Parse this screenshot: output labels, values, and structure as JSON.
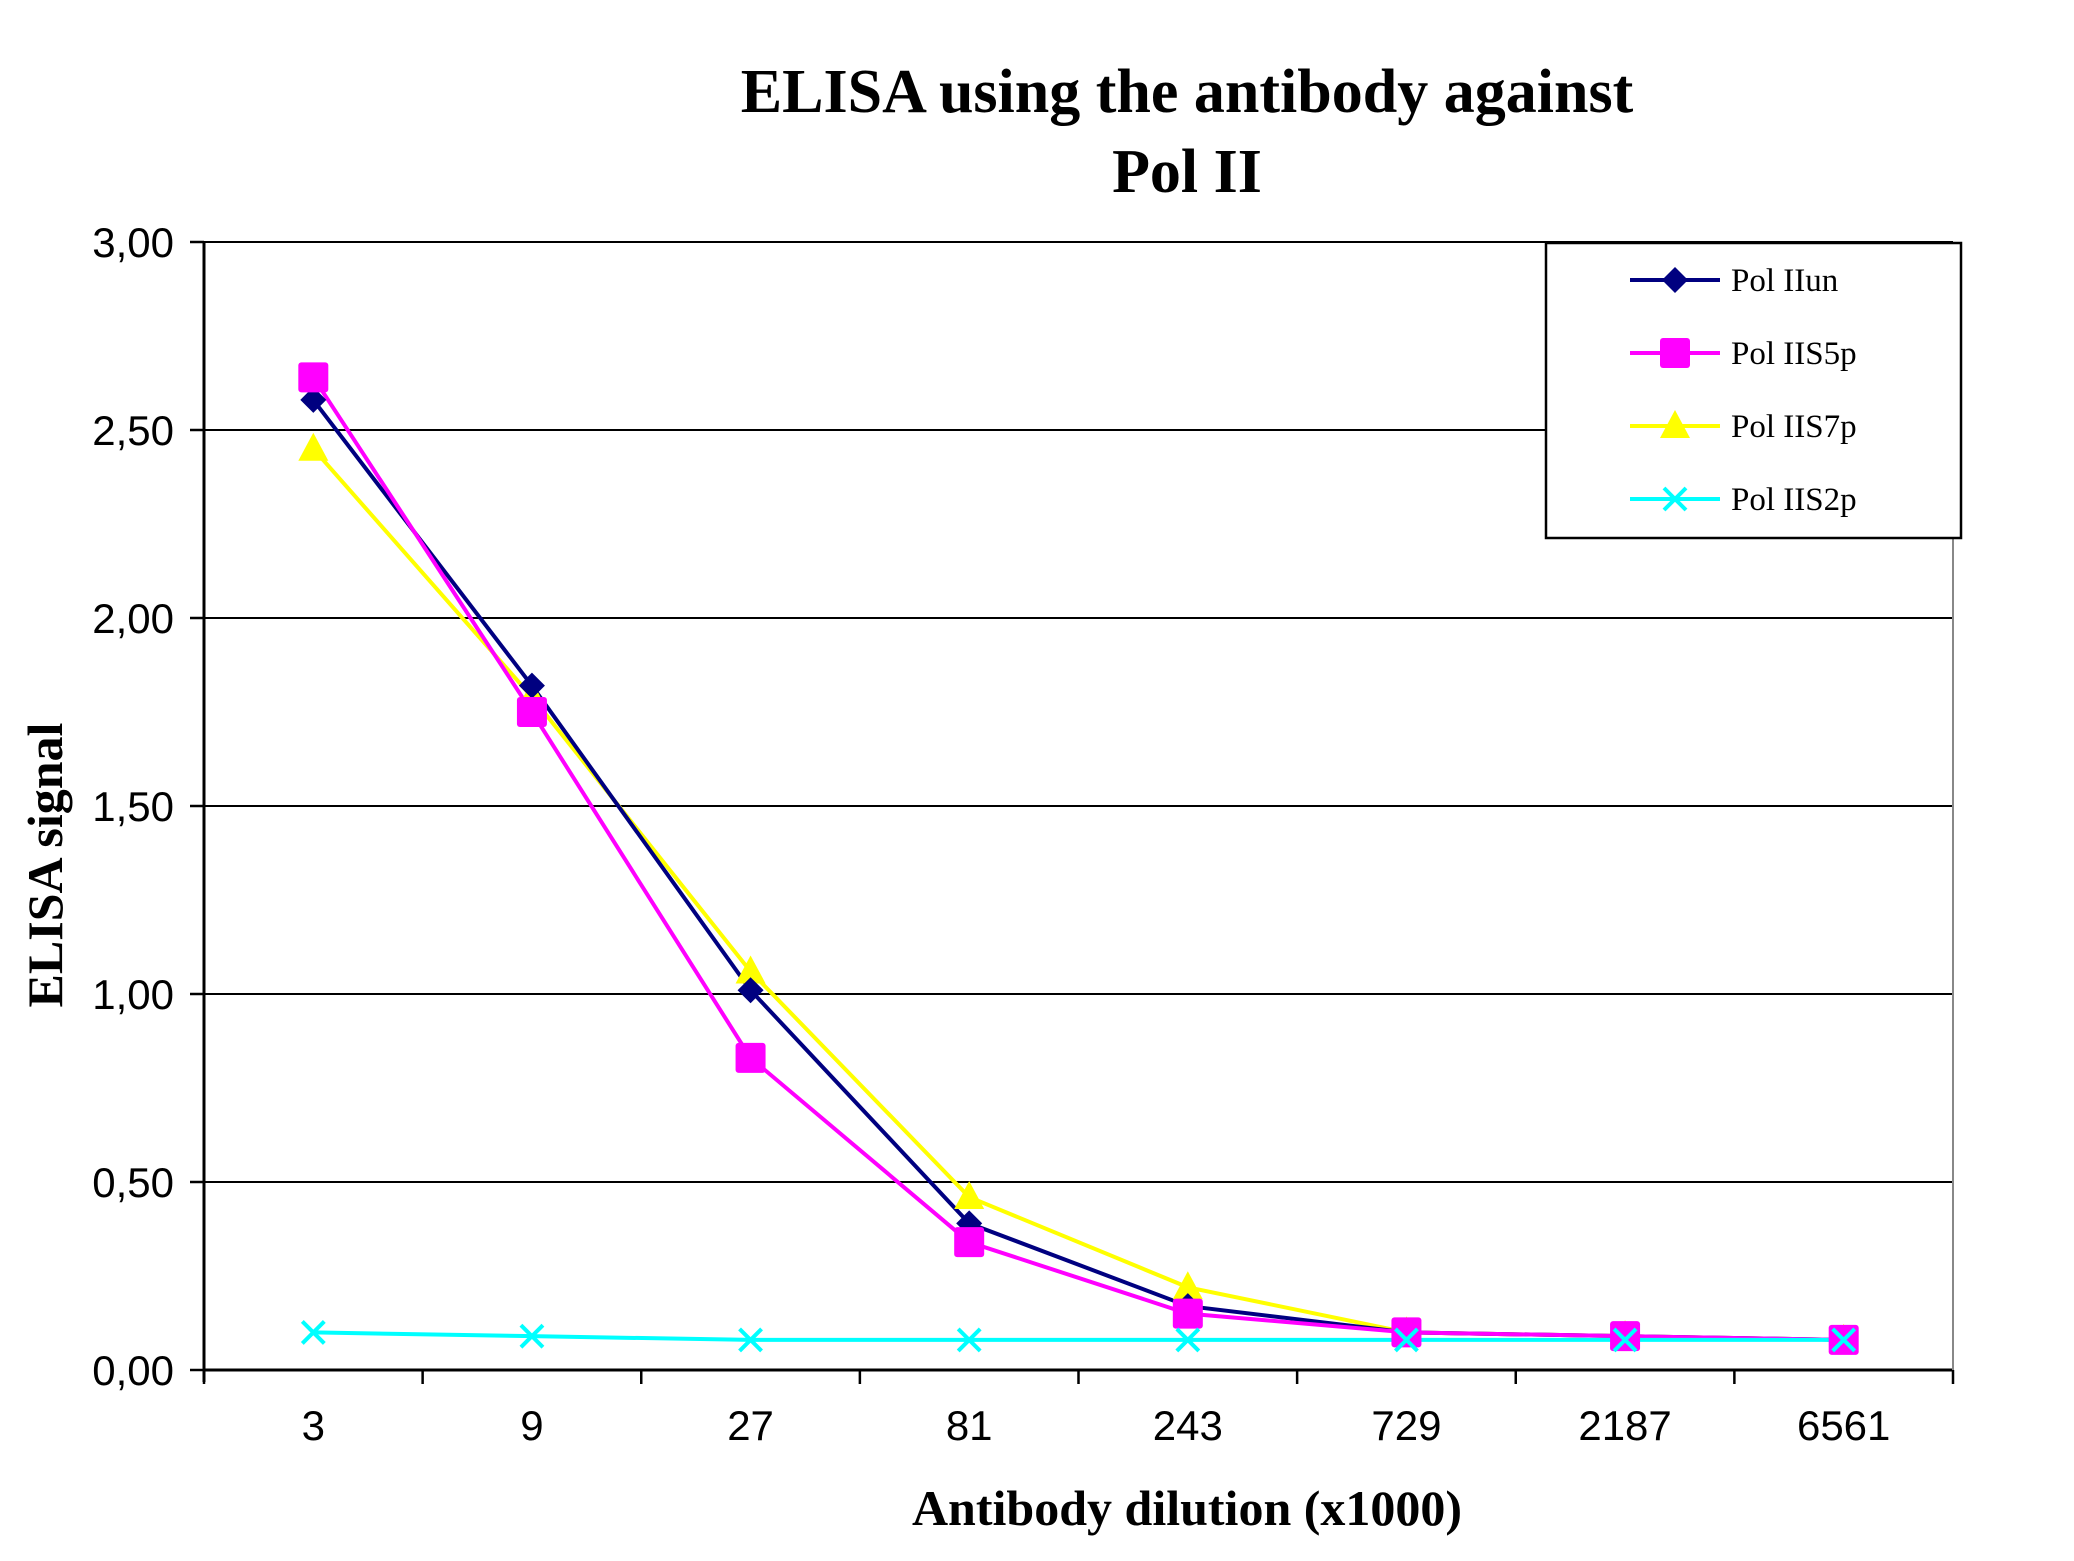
{
  "chart_data": {
    "type": "line",
    "title": "ELISA using the antibody against Pol II",
    "title_lines": [
      "ELISA using the antibody against",
      "Pol II"
    ],
    "xlabel": "Antibody dilution (x1000)",
    "ylabel": "ELISA signal",
    "categories": [
      "3",
      "9",
      "27",
      "81",
      "243",
      "729",
      "2187",
      "6561"
    ],
    "ylim": [
      0,
      3
    ],
    "yticks": [
      "0,00",
      "0,50",
      "1,00",
      "1,50",
      "2,00",
      "2,50",
      "3,00"
    ],
    "ytick_values": [
      0,
      0.5,
      1,
      1.5,
      2,
      2.5,
      3
    ],
    "grid": "horizontal",
    "legend_position": "top-right",
    "series": [
      {
        "name": "Pol IIun",
        "color": "#000080",
        "marker": "diamond",
        "values": [
          2.58,
          1.82,
          1.01,
          0.39,
          0.17,
          0.1,
          0.09,
          0.08
        ]
      },
      {
        "name": "Pol IIS5p",
        "color": "#FF00FF",
        "marker": "square",
        "values": [
          2.64,
          1.75,
          0.83,
          0.34,
          0.15,
          0.1,
          0.09,
          0.08
        ]
      },
      {
        "name": "Pol IIS7p",
        "color": "#FFFF00",
        "marker": "triangle",
        "values": [
          2.45,
          1.79,
          1.06,
          0.46,
          0.22,
          0.1,
          0.09,
          0.08
        ]
      },
      {
        "name": "Pol IIS2p",
        "color": "#00FFFF",
        "marker": "x",
        "values": [
          0.1,
          0.09,
          0.08,
          0.08,
          0.08,
          0.08,
          0.08,
          0.08
        ]
      }
    ]
  }
}
